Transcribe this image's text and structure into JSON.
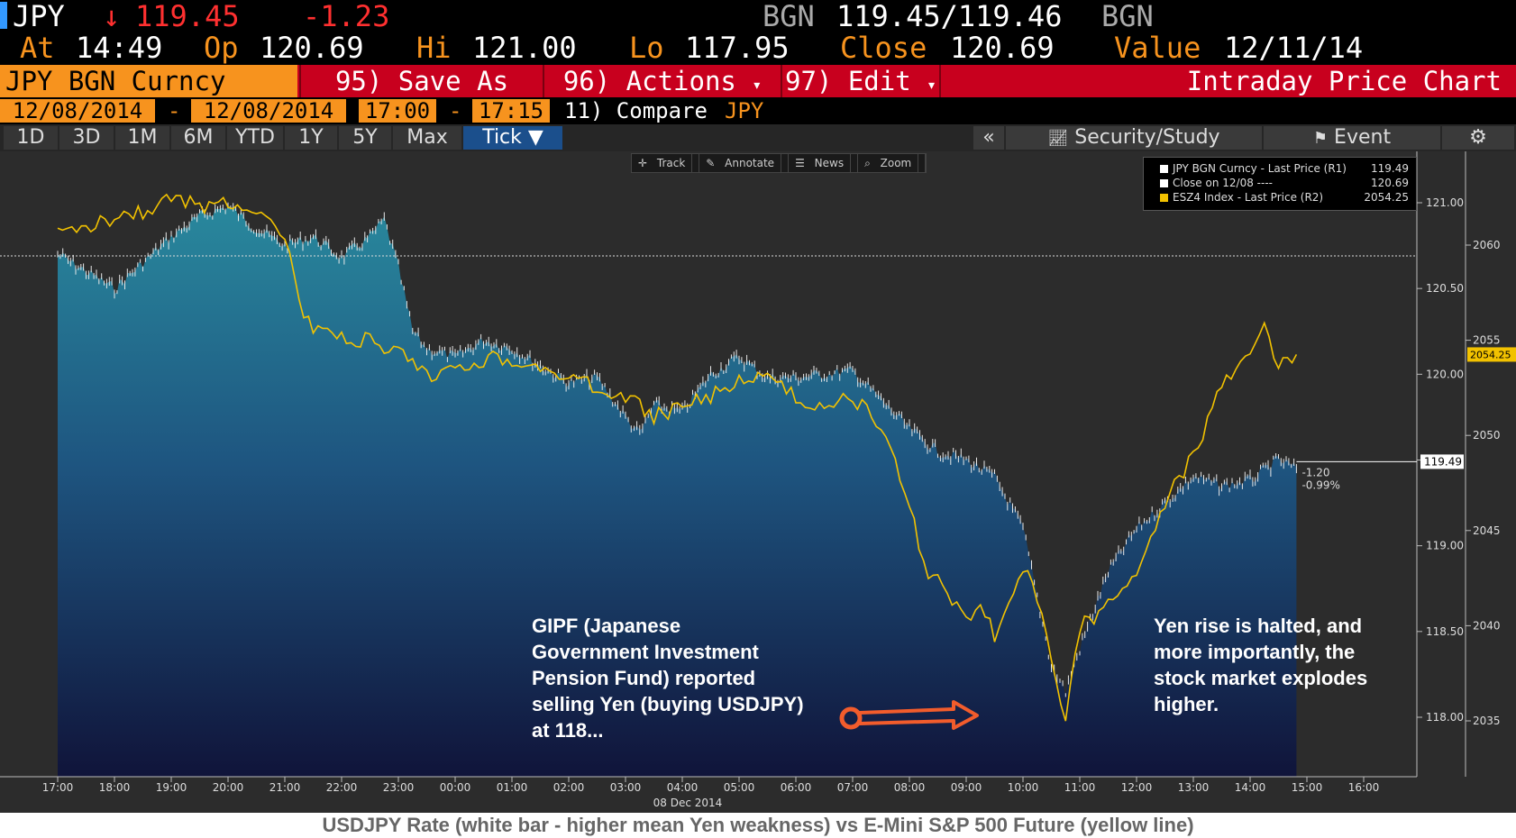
{
  "header": {
    "ticker": "JPY",
    "arrow": "↓",
    "last": "119.45",
    "change": "-1.23",
    "src1": "BGN",
    "bid_ask": "119.45/119.46",
    "src2": "BGN",
    "at_label": "At",
    "at_time": "14:49",
    "op_label": "Op",
    "op": "120.69",
    "hi_label": "Hi",
    "hi": "121.00",
    "lo_label": "Lo",
    "lo": "117.95",
    "close_label": "Close",
    "close": "120.69",
    "value_label": "Value",
    "value_date": "12/11/14"
  },
  "menu": {
    "security": "JPY BGN Curncy",
    "save_as": "95) Save As",
    "actions": "96) Actions",
    "edit": "97) Edit",
    "arrow": "▾",
    "title": "Intraday Price Chart"
  },
  "dates": {
    "start_date": "12/08/2014",
    "dash1": "-",
    "end_date": "12/08/2014",
    "start_time": "17:00",
    "dash2": "-",
    "end_time": "17:15",
    "compare": "11) Compare",
    "compare_ticker": "JPY"
  },
  "ranges": [
    "1D",
    "3D",
    "1M",
    "6M",
    "YTD",
    "1Y",
    "5Y",
    "Max",
    "Tick ▼"
  ],
  "right_tabs": {
    "collapse": "«",
    "security_study": "Security/Study",
    "event": "Event",
    "settings": "⚙"
  },
  "toolbar": [
    "Track",
    "Annotate",
    "News",
    "Zoom"
  ],
  "legend": [
    {
      "name": "JPY BGN Curncy - Last Price (R1)",
      "value": "119.49",
      "color": "#ffffff"
    },
    {
      "name": "Close on 12/08 ----",
      "value": "120.69",
      "color": "#ffffff"
    },
    {
      "name": "ESZ4 Index - Last Price (R2)",
      "value": "2054.25",
      "color": "#f2c200"
    }
  ],
  "annotations": {
    "left": [
      "GIPF (Japanese",
      "Government Investment",
      "Pension Fund) reported",
      "selling Yen (buying USDJPY)",
      "at 118..."
    ],
    "right": [
      "Yen rise is halted, and",
      "more importantly, the",
      "stock market explodes",
      "higher."
    ]
  },
  "markers": {
    "last_tag": "119.49",
    "es_tag": "2054.25",
    "chg_abs": "-1.20",
    "chg_pct": "-0.99%"
  },
  "caption": "USDJPY Rate (white bar - higher mean Yen weakness) vs E-Mini S&P 500 Future (yellow line)",
  "chart_data": {
    "type": "line",
    "date_label": "08 Dec 2014",
    "x_ticks": [
      "18:00",
      "19:00",
      "20:00",
      "21:00",
      "22:00",
      "23:00",
      "00:00",
      "01:00",
      "02:00",
      "03:00",
      "04:00",
      "05:00",
      "06:00",
      "07:00",
      "08:00",
      "09:00",
      "10:00",
      "11:00",
      "12:00",
      "13:00",
      "14:00",
      "15:00",
      "16:00",
      "17:00"
    ],
    "y1_ticks": [
      121.0,
      120.5,
      120.0,
      119.5,
      119.0,
      118.5,
      118.0
    ],
    "y1_range": [
      117.8,
      121.3
    ],
    "y2_ticks": [
      2060,
      2055,
      2050,
      2045,
      2040,
      2035
    ],
    "y2_range": [
      2032.8,
      2065.8
    ],
    "reference_close": 120.69,
    "series": [
      {
        "name": "JPY BGN Curncy - Last Price (R1)",
        "x": [
          "17:00",
          "17:30",
          "18:00",
          "18:30",
          "19:00",
          "19:30",
          "20:00",
          "20:30",
          "21:00",
          "21:30",
          "22:00",
          "22:30",
          "22:45",
          "23:00",
          "23:15",
          "23:30",
          "00:00",
          "00:30",
          "01:00",
          "01:30",
          "02:00",
          "02:30",
          "03:00",
          "03:15",
          "03:30",
          "04:00",
          "04:30",
          "05:00",
          "05:30",
          "06:00",
          "06:30",
          "07:00",
          "07:30",
          "08:00",
          "08:30",
          "09:00",
          "09:30",
          "10:00",
          "10:15",
          "10:30",
          "10:45",
          "11:00",
          "11:30",
          "12:00",
          "12:30",
          "13:00",
          "13:30",
          "14:00",
          "14:30",
          "14:49"
        ],
        "y": [
          120.7,
          120.6,
          120.5,
          120.65,
          120.8,
          120.92,
          120.98,
          120.85,
          120.75,
          120.8,
          120.68,
          120.8,
          120.9,
          120.62,
          120.25,
          120.15,
          120.1,
          120.2,
          120.15,
          120.05,
          119.95,
          119.98,
          119.75,
          119.65,
          119.82,
          119.78,
          120.0,
          120.1,
          119.98,
          119.98,
          120.0,
          120.02,
          119.85,
          119.68,
          119.55,
          119.5,
          119.4,
          119.1,
          118.7,
          118.3,
          118.15,
          118.4,
          118.85,
          119.1,
          119.25,
          119.4,
          119.35,
          119.38,
          119.5,
          119.45
        ]
      },
      {
        "name": "ESZ4 Index - Last Price (R2)",
        "x": [
          "17:00",
          "17:30",
          "18:00",
          "18:30",
          "19:00",
          "19:30",
          "20:00",
          "20:30",
          "21:00",
          "21:15",
          "21:30",
          "22:00",
          "22:30",
          "22:45",
          "23:00",
          "23:30",
          "00:00",
          "00:30",
          "01:00",
          "01:30",
          "02:00",
          "02:30",
          "03:00",
          "03:30",
          "04:00",
          "04:30",
          "05:00",
          "05:30",
          "06:00",
          "06:30",
          "07:00",
          "07:30",
          "08:00",
          "08:15",
          "08:30",
          "09:00",
          "09:15",
          "09:30",
          "10:00",
          "10:15",
          "10:30",
          "10:45",
          "11:00",
          "11:30",
          "12:00",
          "12:30",
          "13:00",
          "13:30",
          "14:00",
          "14:15",
          "14:30",
          "14:49"
        ],
        "y": [
          2060.5,
          2061.0,
          2061.5,
          2061.8,
          2062.5,
          2062.0,
          2062.3,
          2062.0,
          2060.5,
          2057.0,
          2055.5,
          2055.0,
          2055.0,
          2054.0,
          2054.5,
          2053.0,
          2053.5,
          2054.0,
          2054.0,
          2053.5,
          2053.0,
          2052.5,
          2052.0,
          2051.0,
          2051.5,
          2052.0,
          2053.0,
          2053.0,
          2052.0,
          2051.5,
          2052.0,
          2050.5,
          2046.5,
          2043.0,
          2042.5,
          2040.5,
          2041.0,
          2039.5,
          2043.0,
          2041.5,
          2038.0,
          2035.0,
          2040.0,
          2041.0,
          2043.0,
          2046.5,
          2049.0,
          2052.5,
          2054.5,
          2056.0,
          2053.5,
          2054.25
        ]
      }
    ]
  }
}
